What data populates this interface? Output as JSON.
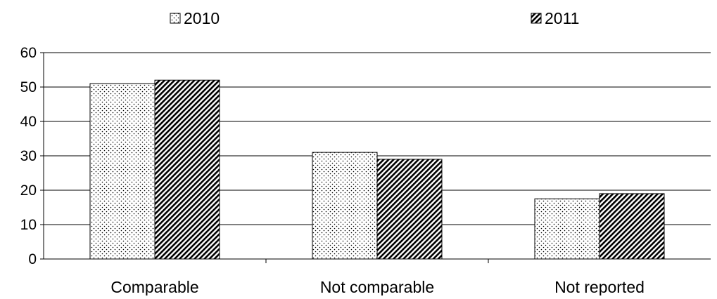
{
  "chart_data": {
    "type": "bar",
    "categories": [
      "Comparable",
      "Not comparable",
      "Not reported"
    ],
    "series": [
      {
        "name": "2010",
        "values": [
          51,
          31,
          17.5
        ],
        "pattern": "dots"
      },
      {
        "name": "2011",
        "values": [
          52,
          29,
          19
        ],
        "pattern": "diagonal-stripes"
      }
    ],
    "title": "",
    "xlabel": "",
    "ylabel": "",
    "ylim": [
      0,
      60
    ],
    "yticks": [
      0,
      10,
      20,
      30,
      40,
      50,
      60
    ],
    "grid": true,
    "legend_position": "top"
  },
  "colors": {
    "bar_outline": "#000000",
    "gridline": "#000000",
    "background": "#ffffff"
  }
}
